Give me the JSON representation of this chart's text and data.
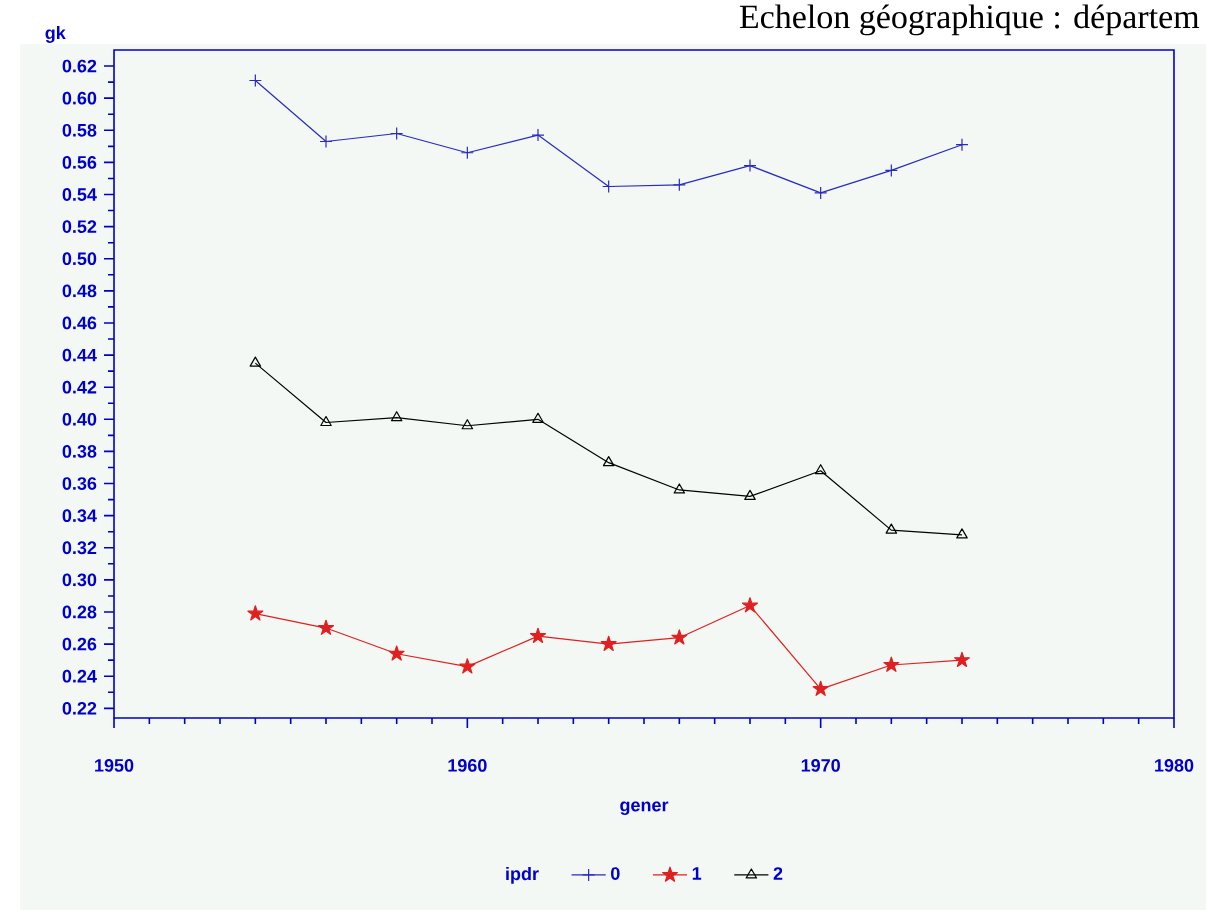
{
  "chart_data": {
    "type": "line",
    "title": "Echelon géographique : départem",
    "xlabel": "gener",
    "ylabel": "gk",
    "legend_title": "ipdr",
    "legend": "bottom",
    "grid": false,
    "line_style": "solid",
    "x": [
      1954,
      1956,
      1958,
      1960,
      1962,
      1964,
      1966,
      1968,
      1970,
      1972,
      1974
    ],
    "xlim": [
      1950,
      1980
    ],
    "xticks": [
      1950,
      1960,
      1970,
      1980
    ],
    "ylim": [
      0.214,
      0.63
    ],
    "yticks": [
      {
        "value": 0.22,
        "label": "0.22"
      },
      {
        "value": 0.24,
        "label": "0.24"
      },
      {
        "value": 0.26,
        "label": "0.26"
      },
      {
        "value": 0.28,
        "label": "0.28"
      },
      {
        "value": 0.3,
        "label": "0.30"
      },
      {
        "value": 0.32,
        "label": "0.32"
      },
      {
        "value": 0.34,
        "label": "0.34"
      },
      {
        "value": 0.36,
        "label": "0.36"
      },
      {
        "value": 0.38,
        "label": "0.38"
      },
      {
        "value": 0.4,
        "label": "0.40"
      },
      {
        "value": 0.42,
        "label": "0.42"
      },
      {
        "value": 0.44,
        "label": "0.44"
      },
      {
        "value": 0.46,
        "label": "0.46"
      },
      {
        "value": 0.48,
        "label": "0.48"
      },
      {
        "value": 0.5,
        "label": "0.50"
      },
      {
        "value": 0.52,
        "label": "0.52"
      },
      {
        "value": 0.54,
        "label": "0.54"
      },
      {
        "value": 0.56,
        "label": "0.56"
      },
      {
        "value": 0.58,
        "label": "0.58"
      },
      {
        "value": 0.6,
        "label": "0.60"
      },
      {
        "value": 0.62,
        "label": "0.62"
      }
    ],
    "series": [
      {
        "name": "0",
        "color": "#2a2ac0",
        "marker": "cross",
        "values": [
          0.611,
          0.573,
          0.578,
          0.566,
          0.577,
          0.545,
          0.546,
          0.558,
          0.541,
          0.555,
          0.571
        ]
      },
      {
        "name": "1",
        "color": "#e02020",
        "marker": "star",
        "values": [
          0.279,
          0.27,
          0.254,
          0.246,
          0.265,
          0.26,
          0.264,
          0.284,
          0.232,
          0.247,
          0.25
        ]
      },
      {
        "name": "2",
        "color": "#000000",
        "marker": "triangle",
        "values": [
          0.435,
          0.398,
          0.401,
          0.396,
          0.4,
          0.373,
          0.356,
          0.352,
          0.368,
          0.331,
          0.328
        ]
      }
    ]
  }
}
